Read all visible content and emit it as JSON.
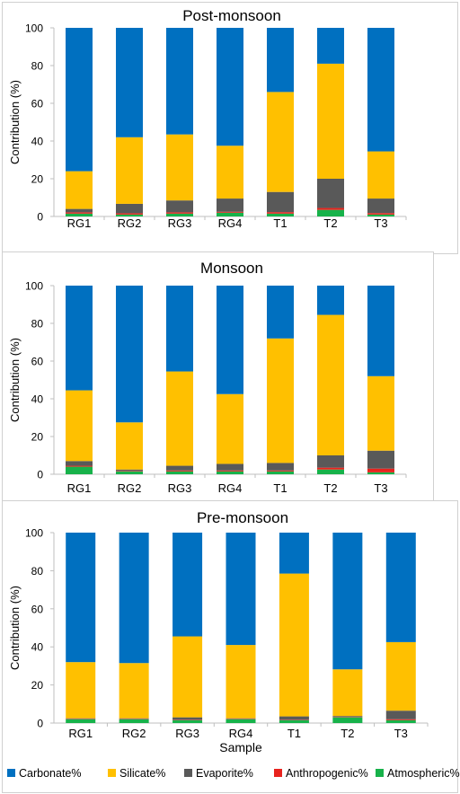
{
  "chart_data": [
    {
      "type": "bar",
      "stacked": true,
      "title": "Post-monsoon",
      "xlabel": "",
      "ylabel": "Contribution (%)",
      "ylim": [
        0,
        100
      ],
      "yticks": [
        "0",
        "20",
        "40",
        "60",
        "80",
        "100"
      ],
      "categories": [
        "RG1",
        "RG2",
        "RG3",
        "RG4",
        "T1",
        "T2",
        "T3"
      ],
      "series": [
        {
          "name": "Atmospheric%",
          "color": "#17b24a",
          "values": [
            1.5,
            1,
            1.5,
            2,
            1.5,
            3.5,
            1
          ]
        },
        {
          "name": "Anthropogenic%",
          "color": "#e8231e",
          "values": [
            0.7,
            0.7,
            0.7,
            0.5,
            0.8,
            1,
            0.8
          ]
        },
        {
          "name": "Evaporite%",
          "color": "#595959",
          "values": [
            1.8,
            5,
            6.3,
            7,
            10.7,
            15.5,
            7.7
          ]
        },
        {
          "name": "Silicate%",
          "color": "#ffc000",
          "values": [
            20,
            35.3,
            35,
            28,
            53,
            61,
            25
          ]
        },
        {
          "name": "Carbonate%",
          "color": "#0070c0",
          "values": [
            76,
            58,
            56.5,
            62.5,
            34,
            19,
            65.5
          ]
        }
      ]
    },
    {
      "type": "bar",
      "stacked": true,
      "title": "Monsoon",
      "xlabel": "",
      "ylabel": "Contribution (%)",
      "ylim": [
        0,
        100
      ],
      "yticks": [
        "0",
        "20",
        "40",
        "60",
        "80",
        "100"
      ],
      "categories": [
        "RG1",
        "RG2",
        "RG3",
        "RG4",
        "T1",
        "T2",
        "T3"
      ],
      "series": [
        {
          "name": "Atmospheric%",
          "color": "#17b24a",
          "values": [
            4,
            1.5,
            1.5,
            1.5,
            1.5,
            2.5,
            1
          ]
        },
        {
          "name": "Anthropogenic%",
          "color": "#e8231e",
          "values": [
            0.5,
            0.3,
            0.5,
            0.5,
            0.5,
            1,
            2
          ]
        },
        {
          "name": "Evaporite%",
          "color": "#595959",
          "values": [
            2.5,
            0.7,
            2.5,
            3.5,
            4,
            6.5,
            9.5
          ]
        },
        {
          "name": "Silicate%",
          "color": "#ffc000",
          "values": [
            37.5,
            25,
            50,
            37,
            66,
            74.5,
            39.5
          ]
        },
        {
          "name": "Carbonate%",
          "color": "#0070c0",
          "values": [
            55.5,
            72.5,
            45.5,
            57.5,
            28,
            15.5,
            48
          ]
        }
      ]
    },
    {
      "type": "bar",
      "stacked": true,
      "title": "Pre-monsoon",
      "xlabel": "Sample",
      "ylabel": "Contribution (%)",
      "ylim": [
        0,
        100
      ],
      "yticks": [
        "0",
        "20",
        "40",
        "60",
        "80",
        "100"
      ],
      "categories": [
        "RG1",
        "RG2",
        "RG3",
        "RG4",
        "T1",
        "T2",
        "T3"
      ],
      "series": [
        {
          "name": "Atmospheric%",
          "color": "#17b24a",
          "values": [
            2,
            2,
            1.5,
            2,
            1.5,
            3,
            1.5
          ]
        },
        {
          "name": "Anthropogenic%",
          "color": "#e8231e",
          "values": [
            0.2,
            0.2,
            0.2,
            0.2,
            0.2,
            0.2,
            0.5
          ]
        },
        {
          "name": "Evaporite%",
          "color": "#595959",
          "values": [
            0.3,
            0.3,
            1.3,
            0.3,
            1.8,
            0.5,
            4.5
          ]
        },
        {
          "name": "Silicate%",
          "color": "#ffc000",
          "values": [
            29.5,
            29,
            42.5,
            38.5,
            75,
            24.5,
            36
          ]
        },
        {
          "name": "Carbonate%",
          "color": "#0070c0",
          "values": [
            68,
            68.5,
            54.5,
            59,
            21.5,
            71.8,
            57.5
          ]
        }
      ]
    }
  ],
  "legend": {
    "placement": "bottom",
    "items": [
      {
        "name": "Carbonate%",
        "color": "#0070c0"
      },
      {
        "name": "Silicate%",
        "color": "#ffc000"
      },
      {
        "name": "Evaporite%",
        "color": "#595959"
      },
      {
        "name": "Anthropogenic%",
        "color": "#e8231e"
      },
      {
        "name": "Atmospheric%",
        "color": "#17b24a"
      }
    ]
  }
}
